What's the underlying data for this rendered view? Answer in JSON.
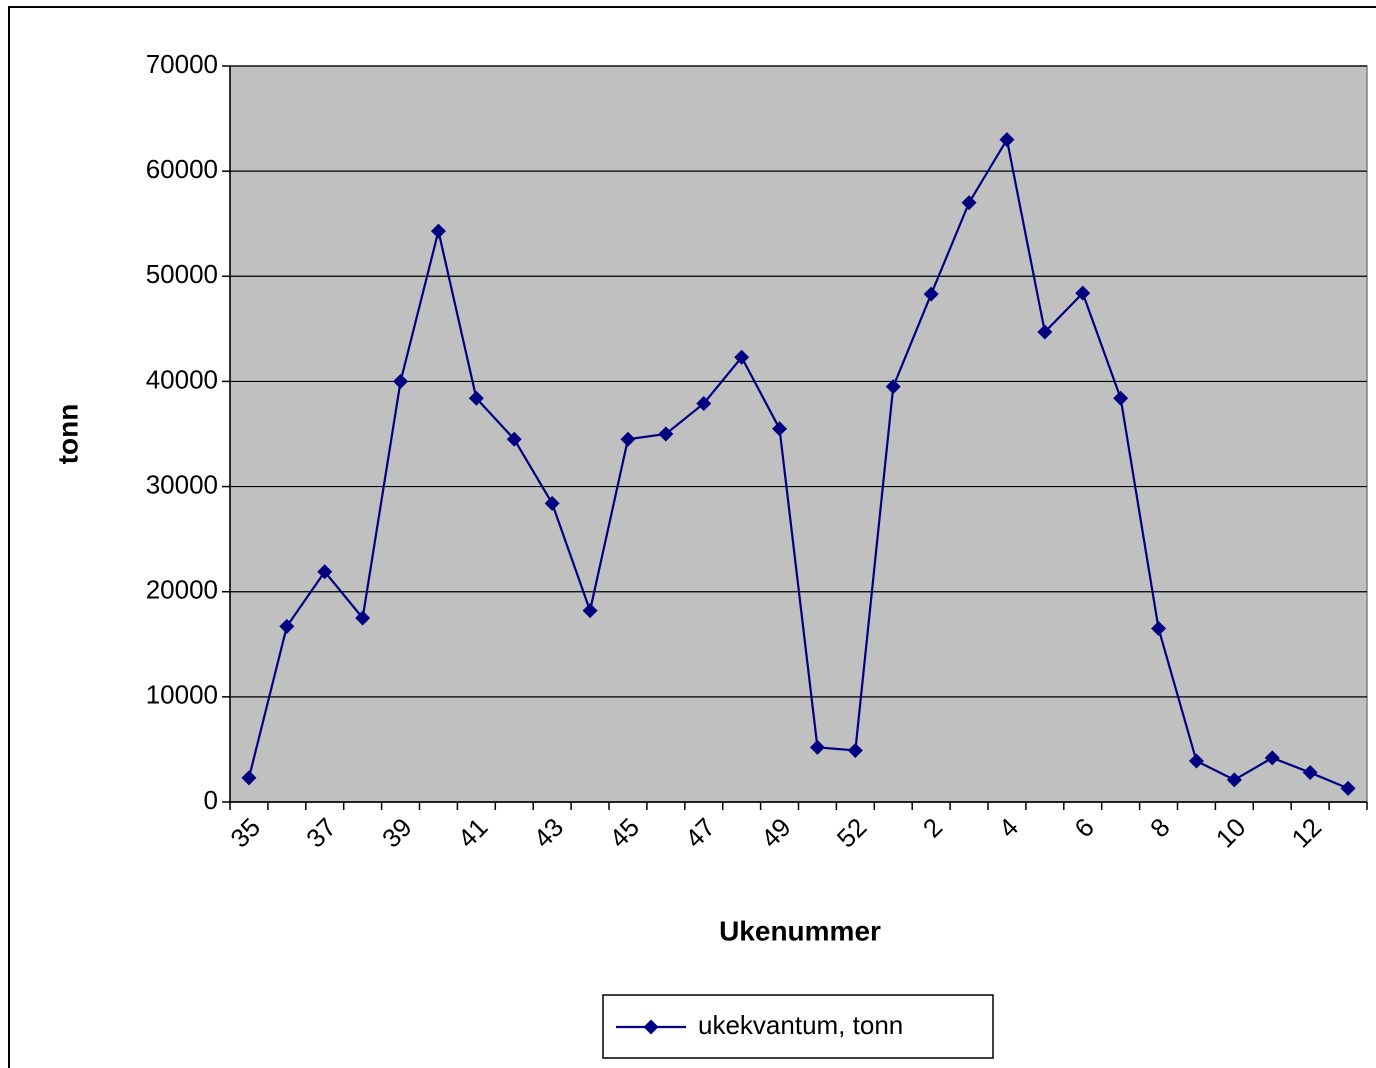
{
  "chart_data": {
    "type": "line",
    "categories": [
      "35",
      null,
      "37",
      null,
      "39",
      null,
      "41",
      null,
      "43",
      null,
      "45",
      null,
      "47",
      null,
      "49",
      null,
      "52",
      null,
      "2",
      null,
      "4",
      null,
      "6",
      null,
      "8",
      null,
      "10",
      null,
      "12",
      null
    ],
    "series": [
      {
        "name": "ukekvantum, tonn",
        "color": "#000080",
        "values": [
          2300,
          16700,
          21900,
          17500,
          40000,
          54300,
          38400,
          34500,
          28400,
          18200,
          34500,
          35000,
          37900,
          42300,
          35500,
          5200,
          4900,
          39500,
          48300,
          57000,
          63000,
          44700,
          48400,
          38400,
          16500,
          3900,
          2100,
          4200,
          2800,
          1300
        ]
      }
    ],
    "x_label": "Ukenummer",
    "y_label": "tonn",
    "ylim": [
      0,
      70000
    ],
    "yticks": [
      0,
      10000,
      20000,
      30000,
      40000,
      50000,
      60000,
      70000
    ],
    "grid": true,
    "legend": "bottom"
  }
}
